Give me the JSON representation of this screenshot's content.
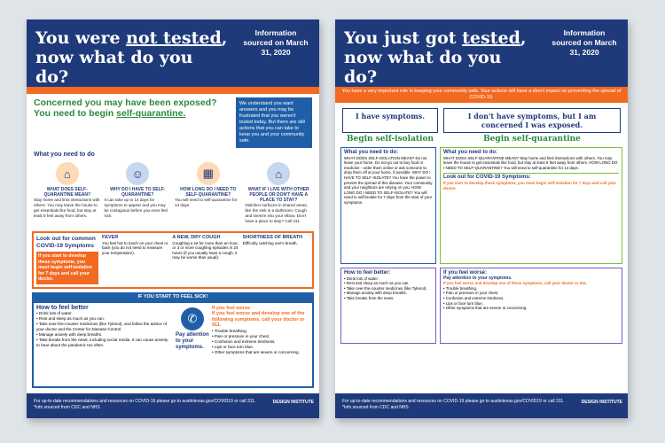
{
  "poster1": {
    "title_a": "You were ",
    "title_u": "not tested",
    "title_b": ", now what do you do?",
    "source": "Information sourced on March 31, 2020",
    "headline_a": "Concerned you may have been exposed? You need to begin ",
    "headline_u": "self-quarantine.",
    "intro": "We understand you want answers and you may be frustrated that you weren't tested today. But there are still actions that you can take to keep you and your community safe.",
    "need_title": "What you need to do",
    "cols": [
      {
        "label": "WHAT DOES SELF-QUARANTINE MEAN?",
        "icon": "house-icon",
        "text": "Stay home and limit interactions with others. You may leave the house to get essentials like food, but stay at least 6 feet away from others."
      },
      {
        "label": "WHY DO I HAVE TO SELF-QUARANTINE?",
        "icon": "person-icon",
        "text": "It can take up to 14 days for symptoms to appear and you may be contagious before you even feel sick."
      },
      {
        "label": "HOW LONG DO I NEED TO SELF-QUARANTINE?",
        "icon": "calendar-icon",
        "text": "You will need to self-quarantine for 14 days."
      },
      {
        "label": "WHAT IF I LIVE WITH OTHER PEOPLE OR DON'T HAVE A PLACE TO STAY?",
        "icon": "home-icon",
        "text": "Disinfect surfaces in shared areas, like the sink in a bathroom. Cough and sneeze into your elbow. Don't have a place to stay? Call 311."
      }
    ],
    "symptoms_title": "Look out for common COVID-19 Symptoms",
    "symptoms_warn": "If you start to develop these symptoms, you must begin self-isolation for 7 days and call your doctor.",
    "symptoms": [
      {
        "name": "FEVER",
        "text": "You feel hot to touch on your chest or back (you do not need to measure your temperature)."
      },
      {
        "name": "A NEW, DRY COUGH",
        "text": "Coughing a lot for more than an hour, or 3 or more coughing episodes in 24 hours (if you usually have a cough, it may be worse than usual)."
      },
      {
        "name": "SHORTNESS OF BREATH",
        "text": "Difficulty catching one's breath."
      }
    ],
    "strip": "IF YOU START TO FEEL SICK!",
    "better_title": "How to feel better",
    "better": [
      "Drink lots of water.",
      "Rest and sleep as much as you can.",
      "Take over-the-counter medicines (like Tylenol), and follow the advice of your doctor and the Center for Disease Control.",
      "Manage anxiety with deep breaths.",
      "Take breaks from the news, including social media. It can cause anxiety to hear about the pandemic too often."
    ],
    "worse_label": "Pay attention to your symptoms.",
    "worse_title": "If you feel worse",
    "worse_sub": "If you feel worse and develop one of the following symptoms, call your doctor or 911.",
    "worse": [
      "Trouble breathing.",
      "Pain or pressure in your chest.",
      "Confusion and extreme tiredness.",
      "Lips or face turn blue.",
      "Other symptoms that are severe or concerning."
    ],
    "footer": "For up-to-date recommendations and resources on COVID-19 please go to austintexas.gov/COVID19 or call 311.",
    "footer_note": "*Info sourced from CDC and NHS"
  },
  "poster2": {
    "title_a": "You just got ",
    "title_u": "tested",
    "title_b": ", now what do you do?",
    "source": "Information sourced on March 31, 2020",
    "sub": "You have a very important role in keeping your community safe. Your actions will have a direct impact on preventing the spread of COVID-19.",
    "choice_a": "I have symptoms.",
    "choice_b": "I don't have symptoms, but I am concerned I was exposed.",
    "begin_a": "Begin self-isolation",
    "begin_b": "Begin self-quarantine",
    "left_title": "What you need to do:",
    "left_text": "WHAT DOES SELF-ISOLATION MEAN? Do not leave your home. Do not go out to buy food or medicine - order them online or ask someone to drop them off at your home, if possible. WHY DO I HAVE TO SELF-ISOLATE? You have the power to prevent the spread of this disease. Your community and your neighbors are relying on you. HOW LONG DO I NEED TO SELF-ISOLATE? You will need to self-isolate for 7 days from the start of your symptoms.",
    "right_title": "What you need to do:",
    "right_text": "WHAT DOES SELF-QUARANTINE MEAN? Stay home and limit interactions with others. You may leave the house to get essentials like food, but stay at least 6 feet away from others. HOW LONG DO I NEED TO SELF-QUARANTINE? You will need to self-quarantine for 14 days.",
    "look_title": "Look out for COVID-19 Symptoms:",
    "look_warn": "If you start to develop these symptoms, you must begin self-isolation for 7 days and call your doctor.",
    "better_title": "How to feel better:",
    "better": [
      "Drink lots of water.",
      "Rest and sleep as much as you can.",
      "Take over-the-counter medicines (like Tylenol).",
      "Manage anxiety with deep breaths.",
      "Take breaks from the news."
    ],
    "worse_title": "If you feel worse:",
    "worse_sub": "Pay attention to your symptoms.",
    "worse_warn": "If you feel worse and develop one of these symptoms, call your doctor or 911.",
    "worse": [
      "Trouble breathing.",
      "Pain or pressure in your chest.",
      "Confusion and extreme tiredness.",
      "Lips or face turn blue.",
      "Other symptoms that are severe or concerning."
    ],
    "footer": "For up-to-date recommendations and resources on COVID-19 please go to austintexas.gov/COVID19 or call 311.",
    "footer_note": "*Info sourced from CDC and NHS"
  },
  "logo": "DESIGN INSTITUTE"
}
